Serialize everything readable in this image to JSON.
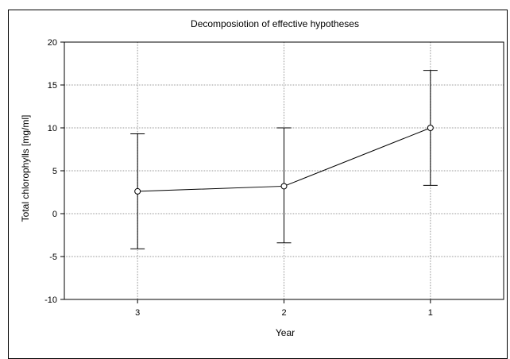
{
  "chart_data": {
    "type": "line",
    "title": "Decomposiotion of effective hypotheses",
    "xlabel": "Year",
    "ylabel": "Total chlorophylls  [mg/ml]",
    "categories": [
      "3",
      "2",
      "1"
    ],
    "series": [
      {
        "values": [
          2.6,
          3.2,
          10.0
        ],
        "lower": [
          -4.1,
          -3.4,
          3.3
        ],
        "upper": [
          9.3,
          10.0,
          16.7
        ]
      }
    ],
    "ylim": [
      -10,
      20
    ],
    "yticks": [
      -10,
      -5,
      0,
      5,
      10,
      15,
      20
    ],
    "grid": true,
    "marker": "open-circle",
    "error_bars": true
  }
}
